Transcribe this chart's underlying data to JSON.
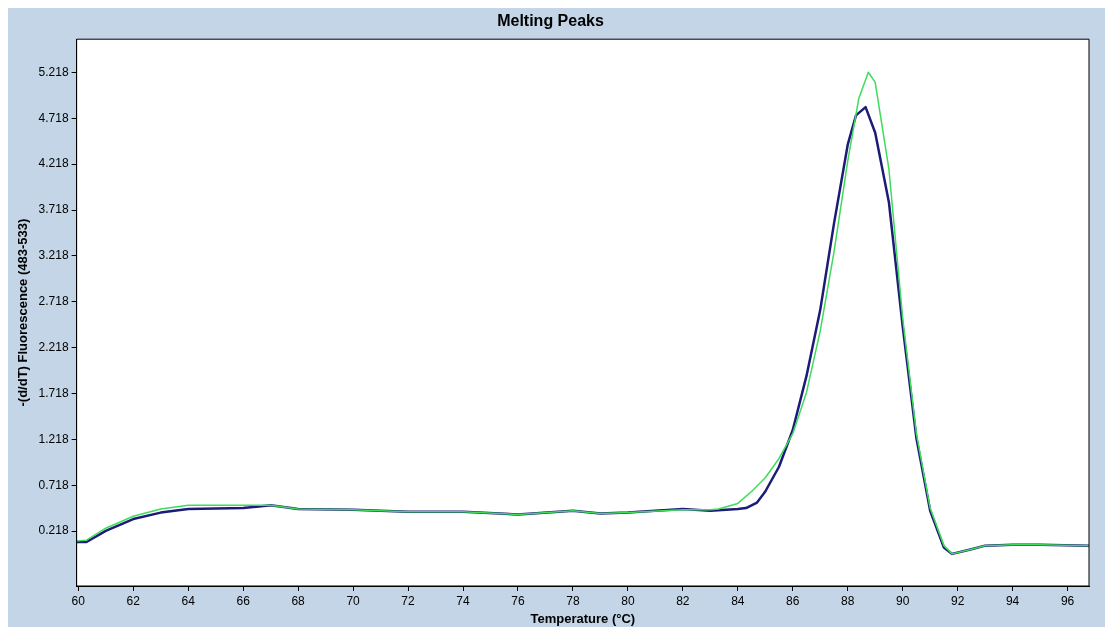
{
  "chart_data": {
    "type": "line",
    "title": "Melting Peaks",
    "xlabel": "Temperature (°C)",
    "ylabel": "-(d/dT) Fluorescence (483-533)",
    "xlim": [
      59.94,
      96.78
    ],
    "xticks": [
      60,
      62,
      64,
      66,
      68,
      70,
      72,
      74,
      76,
      78,
      80,
      82,
      84,
      86,
      88,
      90,
      92,
      94,
      96
    ],
    "ylim": [
      -0.38,
      5.58
    ],
    "yticks": [
      0.218,
      0.718,
      1.218,
      1.718,
      2.218,
      2.718,
      3.218,
      3.718,
      4.218,
      4.718,
      5.218
    ],
    "grid": false,
    "legend": false,
    "marker": "none",
    "line_style": "solid",
    "series": [
      {
        "color": "#1c1c78",
        "x": [
          59.94,
          60.3,
          61,
          62,
          63,
          64,
          66,
          67,
          68,
          70,
          72,
          74,
          76,
          78,
          79,
          80,
          82,
          83,
          84,
          84.3,
          84.7,
          85,
          85.5,
          86,
          86.5,
          87,
          87.5,
          88,
          88.3,
          88.65,
          89,
          89.5,
          90,
          90.5,
          91,
          91.5,
          91.8,
          92.5,
          93,
          94,
          95,
          96.78
        ],
        "values": [
          0.1,
          0.1,
          0.22,
          0.35,
          0.42,
          0.46,
          0.47,
          0.5,
          0.46,
          0.45,
          0.43,
          0.43,
          0.4,
          0.44,
          0.41,
          0.42,
          0.46,
          0.44,
          0.46,
          0.47,
          0.53,
          0.65,
          0.92,
          1.32,
          1.91,
          2.63,
          3.57,
          4.43,
          4.75,
          4.84,
          4.56,
          3.8,
          2.45,
          1.23,
          0.44,
          0.04,
          -0.03,
          0.02,
          0.06,
          0.07,
          0.07,
          0.06
        ]
      },
      {
        "color": "#3ddc5a",
        "x": [
          59.94,
          60.3,
          61,
          62,
          63,
          64,
          66,
          67,
          68,
          70,
          72,
          74,
          76,
          78,
          79,
          80,
          82,
          83,
          83.3,
          84,
          84.5,
          85,
          85.5,
          86,
          86.5,
          87,
          87.5,
          88,
          88.4,
          88.75,
          89,
          89.5,
          90,
          90.5,
          91,
          91.5,
          91.8,
          92.5,
          93,
          94,
          95,
          96.78
        ],
        "values": [
          0.11,
          0.12,
          0.25,
          0.38,
          0.46,
          0.5,
          0.5,
          0.5,
          0.46,
          0.45,
          0.43,
          0.43,
          0.4,
          0.44,
          0.41,
          0.42,
          0.45,
          0.45,
          0.46,
          0.52,
          0.65,
          0.8,
          1.01,
          1.28,
          1.73,
          2.4,
          3.26,
          4.25,
          4.93,
          5.22,
          5.11,
          4.16,
          2.54,
          1.28,
          0.47,
          0.06,
          -0.03,
          0.02,
          0.06,
          0.07,
          0.07,
          0.06
        ]
      }
    ]
  }
}
